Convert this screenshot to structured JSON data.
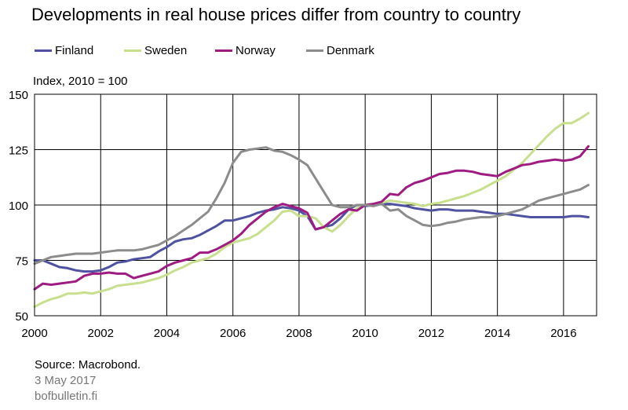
{
  "title": "Developments in real house prices differ from country to country",
  "footer": {
    "source": "Source: Macrobond.",
    "date": "3 May 2017",
    "site": "bofbulletin.fi"
  },
  "chart_data": {
    "type": "line",
    "ylabel": "Index, 2010 = 100",
    "xlim": [
      2000,
      2017
    ],
    "ylim": [
      50,
      150
    ],
    "yticks": [
      50,
      75,
      100,
      125,
      150
    ],
    "xticks": [
      "2000",
      "2002",
      "2004",
      "2006",
      "2008",
      "2010",
      "2012",
      "2014",
      "2016"
    ],
    "grid": true,
    "legend": "top",
    "series": [
      {
        "name": "Finland",
        "color": "#4e52a0",
        "x": [
          2000.0,
          2000.25,
          2000.5,
          2000.75,
          2001.0,
          2001.25,
          2001.5,
          2001.75,
          2002.0,
          2002.25,
          2002.5,
          2002.75,
          2003.0,
          2003.25,
          2003.5,
          2003.75,
          2004.0,
          2004.25,
          2004.5,
          2004.75,
          2005.0,
          2005.25,
          2005.5,
          2005.75,
          2006.0,
          2006.25,
          2006.5,
          2006.75,
          2007.0,
          2007.25,
          2007.5,
          2007.75,
          2008.0,
          2008.25,
          2008.5,
          2008.75,
          2009.0,
          2009.25,
          2009.5,
          2009.75,
          2010.0,
          2010.25,
          2010.5,
          2010.75,
          2011.0,
          2011.25,
          2011.5,
          2011.75,
          2012.0,
          2012.25,
          2012.5,
          2012.75,
          2013.0,
          2013.25,
          2013.5,
          2013.75,
          2014.0,
          2014.25,
          2014.5,
          2014.75,
          2015.0,
          2015.25,
          2015.5,
          2015.75,
          2016.0,
          2016.25,
          2016.5,
          2016.75
        ],
        "values": [
          75,
          75,
          73.5,
          72,
          71.5,
          70.5,
          70,
          70,
          70.5,
          72,
          74,
          74.5,
          75.5,
          76,
          76.5,
          79,
          81,
          83.5,
          84.5,
          85,
          86.5,
          88.5,
          90.5,
          93,
          93,
          94,
          95,
          96.5,
          97.5,
          98,
          99,
          98.5,
          97.5,
          95,
          89,
          90,
          91,
          94,
          98,
          100,
          99.5,
          100,
          100.5,
          100.5,
          100,
          99.5,
          98.5,
          98,
          97.5,
          98,
          98,
          97.5,
          97.5,
          97.5,
          97,
          96.5,
          96,
          96,
          95.5,
          95,
          94.5,
          94.5,
          94.5,
          94.5,
          94.5,
          95,
          95,
          94.5
        ]
      },
      {
        "name": "Sweden",
        "color": "#c8df8e",
        "x": [
          2000.0,
          2000.25,
          2000.5,
          2000.75,
          2001.0,
          2001.25,
          2001.5,
          2001.75,
          2002.0,
          2002.25,
          2002.5,
          2002.75,
          2003.0,
          2003.25,
          2003.5,
          2003.75,
          2004.0,
          2004.25,
          2004.5,
          2004.75,
          2005.0,
          2005.25,
          2005.5,
          2005.75,
          2006.0,
          2006.25,
          2006.5,
          2006.75,
          2007.0,
          2007.25,
          2007.5,
          2007.75,
          2008.0,
          2008.25,
          2008.5,
          2008.75,
          2009.0,
          2009.25,
          2009.5,
          2009.75,
          2010.0,
          2010.25,
          2010.5,
          2010.75,
          2011.0,
          2011.25,
          2011.5,
          2011.75,
          2012.0,
          2012.25,
          2012.5,
          2012.75,
          2013.0,
          2013.25,
          2013.5,
          2013.75,
          2014.0,
          2014.25,
          2014.5,
          2014.75,
          2015.0,
          2015.25,
          2015.5,
          2015.75,
          2016.0,
          2016.25,
          2016.5,
          2016.75
        ],
        "values": [
          54,
          56,
          57.5,
          58.5,
          60,
          60,
          60.5,
          60,
          61,
          62,
          63.5,
          64,
          64.5,
          65,
          66,
          67,
          68.5,
          70.5,
          72,
          74,
          75,
          76,
          78,
          81,
          83,
          84,
          85,
          87,
          90,
          93,
          97,
          97.5,
          95,
          95,
          94,
          90,
          88,
          91,
          95,
          98.5,
          100,
          100.5,
          101,
          102,
          101.5,
          101,
          100.5,
          99.5,
          100.5,
          101,
          102,
          103,
          104,
          105.5,
          107,
          109,
          111,
          113,
          116,
          119,
          123,
          127,
          131,
          134.5,
          137,
          137,
          139,
          141.5
        ]
      },
      {
        "name": "Norway",
        "color": "#9e1c82",
        "x": [
          2000.0,
          2000.25,
          2000.5,
          2000.75,
          2001.0,
          2001.25,
          2001.5,
          2001.75,
          2002.0,
          2002.25,
          2002.5,
          2002.75,
          2003.0,
          2003.25,
          2003.5,
          2003.75,
          2004.0,
          2004.25,
          2004.5,
          2004.75,
          2005.0,
          2005.25,
          2005.5,
          2005.75,
          2006.0,
          2006.25,
          2006.5,
          2006.75,
          2007.0,
          2007.25,
          2007.5,
          2007.75,
          2008.0,
          2008.25,
          2008.5,
          2008.75,
          2009.0,
          2009.25,
          2009.5,
          2009.75,
          2010.0,
          2010.25,
          2010.5,
          2010.75,
          2011.0,
          2011.25,
          2011.5,
          2011.75,
          2012.0,
          2012.25,
          2012.5,
          2012.75,
          2013.0,
          2013.25,
          2013.5,
          2013.75,
          2014.0,
          2014.25,
          2014.5,
          2014.75,
          2015.0,
          2015.25,
          2015.5,
          2015.75,
          2016.0,
          2016.25,
          2016.5,
          2016.75
        ],
        "values": [
          62,
          64.5,
          64,
          64.5,
          65,
          65.5,
          68,
          69,
          69,
          69.5,
          69,
          69,
          67,
          68,
          69,
          70,
          72.5,
          74,
          75,
          76,
          78.5,
          78.5,
          80,
          82,
          84,
          87,
          91,
          94,
          97,
          99,
          100.5,
          99.5,
          98.5,
          96.5,
          89,
          90,
          93,
          96,
          98,
          97.5,
          100,
          100.5,
          101.5,
          105,
          104.5,
          108,
          110,
          111,
          112.5,
          114,
          114.5,
          115.5,
          115.5,
          115,
          114,
          113.5,
          113,
          115,
          116.5,
          118,
          118.5,
          119.5,
          120,
          120.5,
          120,
          120.5,
          122,
          126.5
        ]
      },
      {
        "name": "Denmark",
        "color": "#8c8c8c",
        "x": [
          2000.0,
          2000.25,
          2000.5,
          2000.75,
          2001.0,
          2001.25,
          2001.5,
          2001.75,
          2002.0,
          2002.25,
          2002.5,
          2002.75,
          2003.0,
          2003.25,
          2003.5,
          2003.75,
          2004.0,
          2004.25,
          2004.5,
          2004.75,
          2005.0,
          2005.25,
          2005.5,
          2005.75,
          2006.0,
          2006.25,
          2006.5,
          2006.75,
          2007.0,
          2007.25,
          2007.5,
          2007.75,
          2008.0,
          2008.25,
          2008.5,
          2008.75,
          2009.0,
          2009.25,
          2009.5,
          2009.75,
          2010.0,
          2010.25,
          2010.5,
          2010.75,
          2011.0,
          2011.25,
          2011.5,
          2011.75,
          2012.0,
          2012.25,
          2012.5,
          2012.75,
          2013.0,
          2013.25,
          2013.5,
          2013.75,
          2014.0,
          2014.25,
          2014.5,
          2014.75,
          2015.0,
          2015.25,
          2015.5,
          2015.75,
          2016.0,
          2016.25,
          2016.5,
          2016.75
        ],
        "values": [
          73.5,
          75,
          76.5,
          77,
          77.5,
          78,
          78,
          78,
          78.5,
          79,
          79.5,
          79.5,
          79.5,
          80,
          81,
          82,
          84,
          86,
          88.5,
          91,
          94,
          97,
          103,
          110,
          119,
          124,
          125,
          125.5,
          126,
          124.5,
          124,
          122.5,
          120.5,
          118,
          112,
          106,
          100,
          99,
          99,
          100,
          100,
          99.5,
          100.5,
          97.5,
          98,
          95,
          93,
          91,
          90.5,
          91,
          92,
          92.5,
          93.5,
          94,
          94.5,
          94.5,
          95,
          96,
          97,
          98,
          100,
          102,
          103,
          104,
          105,
          106,
          107,
          109
        ]
      }
    ]
  }
}
